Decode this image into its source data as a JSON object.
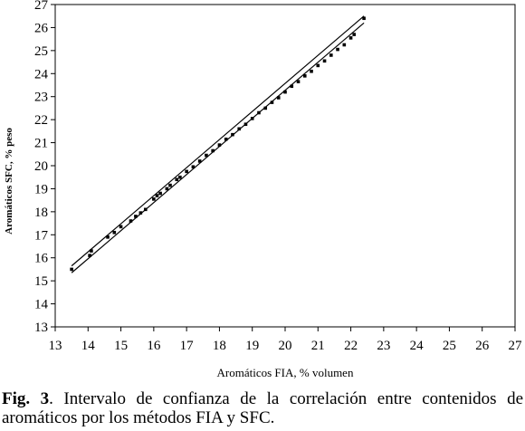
{
  "chart_data": {
    "type": "scatter",
    "xlabel": "Aromáticos FIA, % volumen",
    "ylabel": "Aromáticos SFC, % peso",
    "xlim": [
      13,
      27
    ],
    "ylim": [
      13,
      27
    ],
    "x_ticks": [
      "13",
      "14",
      "15",
      "16",
      "17",
      "18",
      "19",
      "20",
      "21",
      "22",
      "23",
      "24",
      "25",
      "26",
      "27"
    ],
    "y_ticks": [
      "13",
      "14",
      "15",
      "16",
      "17",
      "18",
      "19",
      "20",
      "21",
      "22",
      "23",
      "24",
      "25",
      "26",
      "27"
    ],
    "grid": false,
    "legend": "none",
    "series": [
      {
        "kind": "points",
        "x": [
          13.5,
          14.05,
          14.1,
          14.6,
          14.8,
          15.0,
          15.3,
          15.45,
          15.6,
          15.75,
          16.0,
          16.1,
          16.2,
          16.4,
          16.5,
          16.7,
          16.8,
          17.0,
          17.2,
          17.4,
          17.6,
          17.8,
          18.0,
          18.2,
          18.4,
          18.6,
          18.8,
          19.0,
          19.2,
          19.4,
          19.6,
          19.8,
          20.0,
          20.2,
          20.4,
          20.6,
          20.8,
          21.0,
          21.2,
          21.4,
          21.6,
          21.8,
          22.0,
          22.1,
          22.4
        ],
        "y": [
          15.5,
          16.1,
          16.3,
          16.9,
          17.1,
          17.35,
          17.6,
          17.8,
          17.95,
          18.1,
          18.55,
          18.7,
          18.8,
          19.0,
          19.15,
          19.4,
          19.5,
          19.75,
          19.95,
          20.2,
          20.45,
          20.65,
          20.9,
          21.15,
          21.35,
          21.6,
          21.8,
          22.05,
          22.3,
          22.5,
          22.75,
          22.95,
          23.2,
          23.45,
          23.65,
          23.9,
          24.1,
          24.35,
          24.55,
          24.8,
          25.05,
          25.25,
          25.55,
          25.7,
          26.4
        ]
      },
      {
        "kind": "line",
        "x": [
          13.5,
          22.4
        ],
        "y": [
          15.65,
          26.5
        ]
      },
      {
        "kind": "line",
        "x": [
          13.5,
          22.4
        ],
        "y": [
          15.35,
          26.2
        ]
      }
    ]
  },
  "caption": {
    "label": "Fig. 3",
    "text": ". Intervalo de confianza de la correlación entre contenidos de aromáticos por los métodos FIA y SFC."
  }
}
